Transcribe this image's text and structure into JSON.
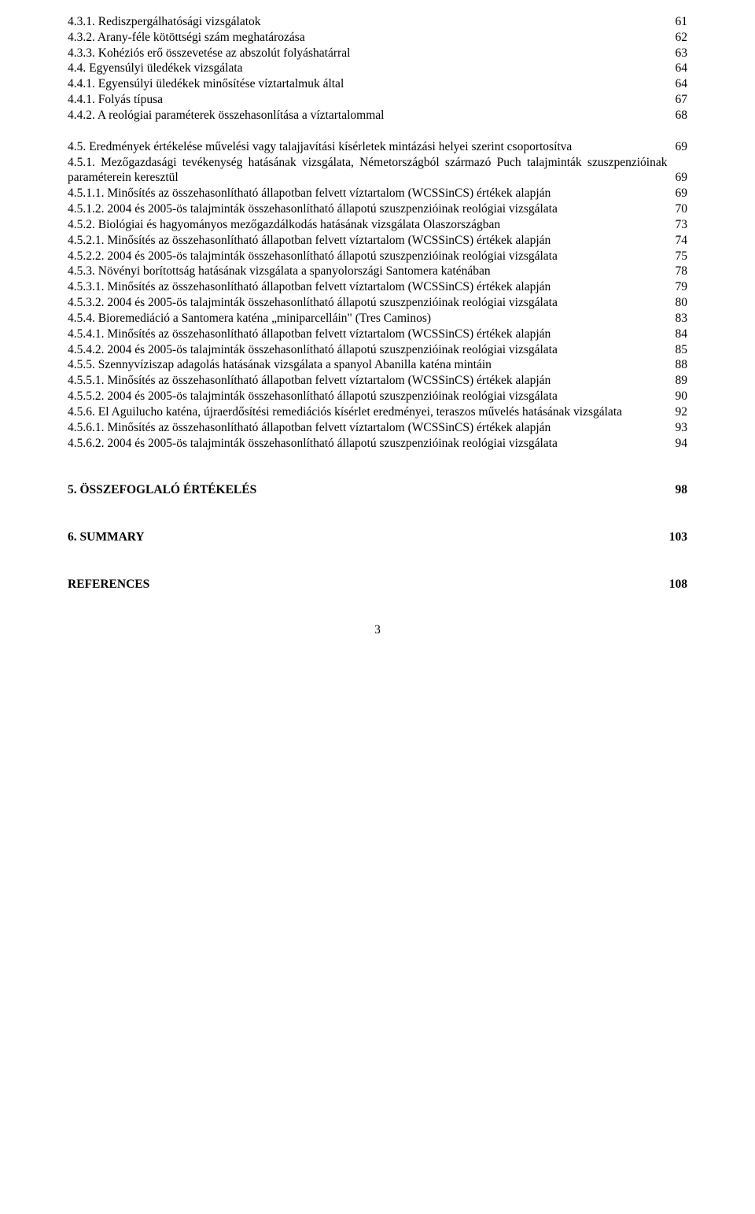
{
  "entries": [
    {
      "title": "4.3.1. Rediszpergálhatósági vizsgálatok",
      "page": "61"
    },
    {
      "title": "4.3.2. Arany-féle kötöttségi szám meghatározása",
      "page": "62"
    },
    {
      "title": "4.3.3. Kohéziós erő összevetése az abszolút folyáshatárral",
      "page": "63"
    },
    {
      "title": "4.4. Egyensúlyi üledékek vizsgálata",
      "page": "64"
    },
    {
      "title": "4.4.1. Egyensúlyi üledékek minősítése víztartalmuk által",
      "page": "64"
    },
    {
      "title": "4.4.1. Folyás típusa",
      "page": "67"
    },
    {
      "title": "4.4.2. A reológiai paraméterek összehasonlítása a víztartalommal",
      "page": "68"
    },
    {
      "gap": true
    },
    {
      "title": "4.5. Eredmények értékelése művelési vagy talajjavítási kísérletek mintázási helyei szerint csoportosítva",
      "page": "69"
    },
    {
      "title": "4.5.1. Mezőgazdasági tevékenység hatásának vizsgálata, Németországból származó Puch talajminták szuszpenzióinak paraméterein keresztül",
      "page": "69"
    },
    {
      "title": "4.5.1.1. Minősítés az összehasonlítható állapotban felvett víztartalom (WCSSinCS) értékek alapján",
      "page": "69"
    },
    {
      "title": "4.5.1.2. 2004 és 2005-ös talajminták összehasonlítható állapotú szuszpenzióinak reológiai vizsgálata",
      "page": "70"
    },
    {
      "title": "4.5.2. Biológiai és hagyományos mezőgazdálkodás hatásának vizsgálata Olaszországban",
      "page": "73"
    },
    {
      "title": "4.5.2.1. Minősítés az összehasonlítható állapotban felvett víztartalom (WCSSinCS) értékek alapján",
      "page": "74"
    },
    {
      "title": "4.5.2.2. 2004 és 2005-ös talajminták összehasonlítható állapotú szuszpenzióinak reológiai vizsgálata",
      "page": "75"
    },
    {
      "title": "4.5.3. Növényi borítottság hatásának vizsgálata a spanyolországi Santomera katénában",
      "page": "78"
    },
    {
      "title": "4.5.3.1. Minősítés az összehasonlítható állapotban felvett víztartalom (WCSSinCS) értékek alapján",
      "page": "79"
    },
    {
      "title": "4.5.3.2. 2004 és 2005-ös talajminták összehasonlítható állapotú szuszpenzióinak reológiai vizsgálata",
      "page": "80"
    },
    {
      "title": "4.5.4. Bioremediáció a Santomera katéna „miniparcelláin\" (Tres Caminos)",
      "page": "83"
    },
    {
      "title": "4.5.4.1. Minősítés az összehasonlítható állapotban felvett víztartalom (WCSSinCS) értékek alapján",
      "page": "84"
    },
    {
      "title": "4.5.4.2. 2004 és 2005-ös talajminták összehasonlítható állapotú szuszpenzióinak reológiai vizsgálata",
      "page": "85"
    },
    {
      "title": "4.5.5. Szennyvíziszap adagolás hatásának vizsgálata a spanyol Abanilla katéna mintáin",
      "page": "88"
    },
    {
      "title": "4.5.5.1. Minősítés az összehasonlítható állapotban felvett víztartalom (WCSSinCS) értékek alapján",
      "page": "89"
    },
    {
      "title": "4.5.5.2. 2004 és 2005-ös talajminták összehasonlítható állapotú szuszpenzióinak reológiai vizsgálata",
      "page": "90"
    },
    {
      "title": "4.5.6. El Aguilucho katéna, újraerdősítési remediációs kísérlet eredményei, teraszos művelés hatásának vizsgálata",
      "page": "92"
    },
    {
      "title": "4.5.6.1. Minősítés az összehasonlítható állapotban felvett víztartalom (WCSSinCS) értékek alapján",
      "page": "93"
    },
    {
      "title": "4.5.6.2. 2004 és 2005-ös talajminták összehasonlítható állapotú szuszpenzióinak reológiai vizsgálata",
      "page": "94"
    },
    {
      "biggap": true
    },
    {
      "title": "5. ÖSSZEFOGLALÓ ÉRTÉKELÉS",
      "page": "98",
      "bold": true
    },
    {
      "biggap": true
    },
    {
      "title": "6. SUMMARY",
      "page": "103",
      "bold": true
    },
    {
      "biggap": true
    },
    {
      "title": "REFERENCES",
      "page": "108",
      "bold": true
    }
  ],
  "pagenum": "3"
}
